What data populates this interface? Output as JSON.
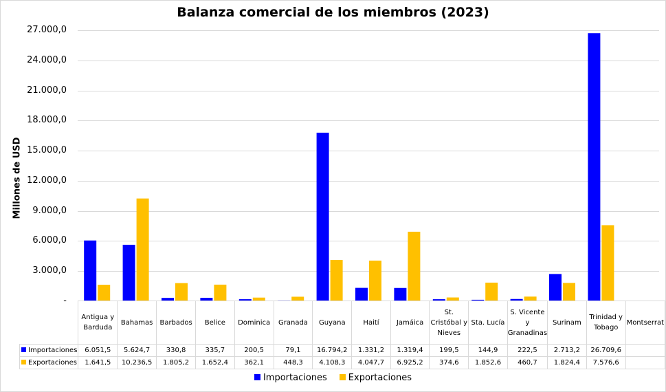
{
  "chart_data": {
    "type": "bar",
    "title": "Balanza comercial de los miembros (2023)",
    "xlabel": "",
    "ylabel": "Millones de USD",
    "ylim": [
      0,
      27000
    ],
    "yticks": [
      "-",
      "3.000,0",
      "6.000,0",
      "9.000,0",
      "12.000,0",
      "15.000,0",
      "18.000,0",
      "21.000,0",
      "24.000,0",
      "27.000,0"
    ],
    "ytick_values": [
      0,
      3000,
      6000,
      9000,
      12000,
      15000,
      18000,
      21000,
      24000,
      27000
    ],
    "grid": true,
    "legend_position": "bottom",
    "categories": [
      "Antigua y Barduda",
      "Bahamas",
      "Barbados",
      "Belice",
      "Dominica",
      "Granada",
      "Guyana",
      "Haití",
      "Jamáica",
      "St. Cristóbal y Nieves",
      "Sta. Lucía",
      "S. Vicente y Granadinas",
      "Surinam",
      "Trinidad y Tobago",
      "Montserrat"
    ],
    "series": [
      {
        "name": "Importaciones",
        "color": "#0000ff",
        "values": [
          6051.5,
          5624.7,
          330.8,
          335.7,
          200.5,
          79.1,
          16794.2,
          1331.2,
          1319.4,
          199.5,
          144.9,
          222.5,
          2713.2,
          26709.6,
          null
        ],
        "labels": [
          "6.051,5",
          "5.624,7",
          "330,8",
          "335,7",
          "200,5",
          "79,1",
          "16.794,2",
          "1.331,2",
          "1.319,4",
          "199,5",
          "144,9",
          "222,5",
          "2.713,2",
          "26.709,6",
          ""
        ]
      },
      {
        "name": "Exportaciones",
        "color": "#ffc000",
        "values": [
          1641.5,
          10236.5,
          1805.2,
          1652.4,
          362.1,
          448.3,
          4108.3,
          4047.7,
          6925.2,
          374.6,
          1852.6,
          460.7,
          1824.4,
          7576.6,
          null
        ],
        "labels": [
          "1.641,5",
          "10.236,5",
          "1.805,2",
          "1.652,4",
          "362,1",
          "448,3",
          "4.108,3",
          "4.047,7",
          "6.925,2",
          "374,6",
          "1.852,6",
          "460,7",
          "1.824,4",
          "7.576,6",
          ""
        ]
      }
    ]
  }
}
